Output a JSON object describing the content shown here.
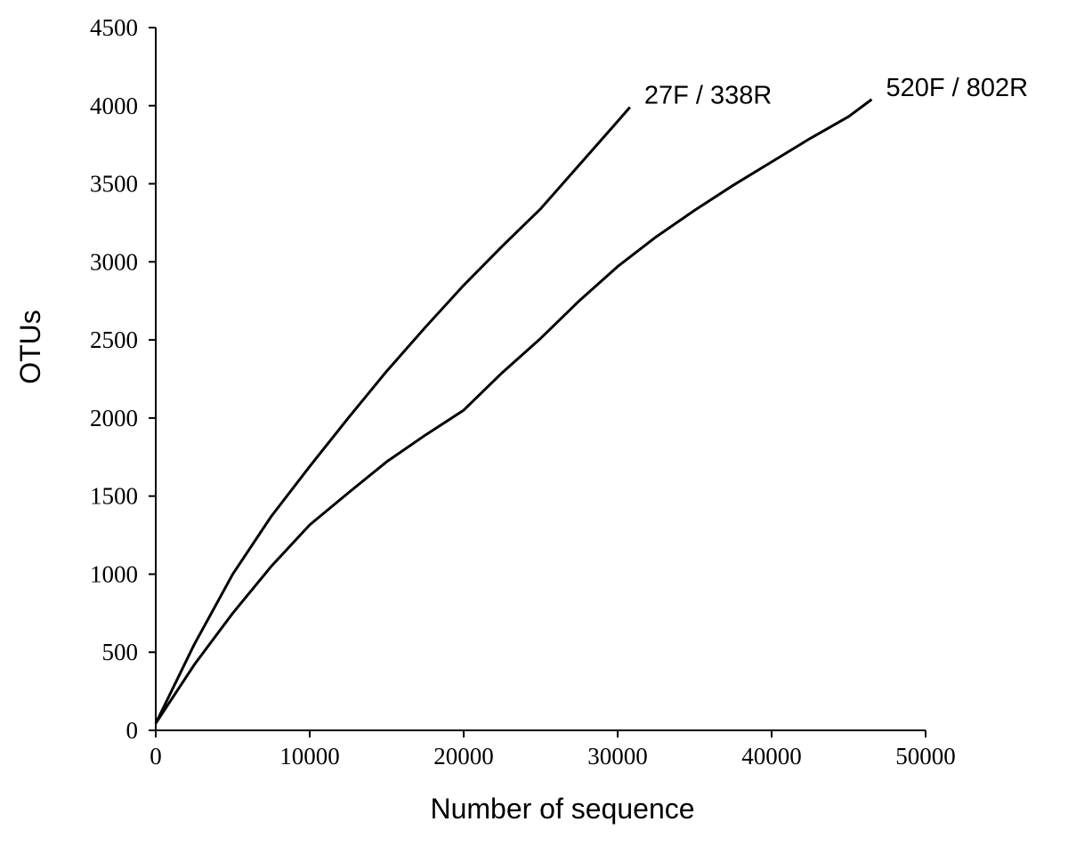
{
  "chart_data": {
    "type": "line",
    "x_label": "Number of sequence",
    "y_label": "OTUs",
    "xlim": [
      0,
      50000
    ],
    "xticks": [
      0,
      10000,
      20000,
      30000,
      40000,
      50000
    ],
    "ylim": [
      0,
      4500
    ],
    "yticks": [
      0,
      500,
      1000,
      1500,
      2000,
      2500,
      3000,
      3500,
      4000,
      4500
    ],
    "series": [
      {
        "name": "27F / 338R",
        "color": "#000000",
        "x": [
          0,
          2500,
          5000,
          7500,
          10000,
          12500,
          15000,
          17500,
          20000,
          22500,
          25000,
          27500,
          30000,
          30800
        ],
        "values": [
          45,
          550,
          1000,
          1370,
          1690,
          2000,
          2300,
          2580,
          2850,
          3100,
          3340,
          3620,
          3900,
          3990
        ]
      },
      {
        "name": "520F / 802R",
        "color": "#000000",
        "x": [
          0,
          2500,
          5000,
          7500,
          10000,
          12500,
          15000,
          17500,
          20000,
          22500,
          25000,
          27500,
          30000,
          32500,
          35000,
          37500,
          40000,
          42500,
          45000,
          46500
        ],
        "values": [
          45,
          420,
          750,
          1050,
          1316,
          1520,
          1720,
          1890,
          2050,
          2290,
          2510,
          2750,
          2970,
          3160,
          3330,
          3490,
          3640,
          3790,
          3930,
          4040
        ]
      }
    ]
  }
}
